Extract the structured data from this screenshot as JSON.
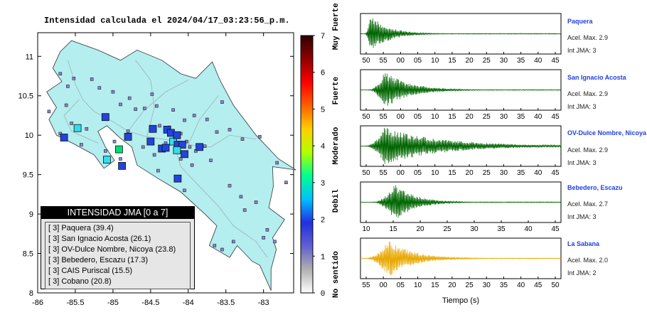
{
  "map": {
    "title": "Intensidad calculada el 2024/04/17_03:23:56_p.m.",
    "y_ticks": [
      "11",
      "10.5",
      "10",
      "9.5",
      "9",
      "8.5",
      "8"
    ],
    "x_ticks": [
      "-86",
      "-85.5",
      "-85",
      "-84.5",
      "-84",
      "-83.5",
      "-83"
    ],
    "sea_color": "#ffffff",
    "land_color": "#b4eeee",
    "station_points": [
      {
        "lon": -85.7,
        "lat": 10.78
      },
      {
        "lon": -85.6,
        "lat": 10.62
      },
      {
        "lon": -85.52,
        "lat": 10.72
      },
      {
        "lon": -85.28,
        "lat": 10.71
      },
      {
        "lon": -85.18,
        "lat": 10.6
      },
      {
        "lon": -85.0,
        "lat": 10.55
      },
      {
        "lon": -84.9,
        "lat": 10.39
      },
      {
        "lon": -84.78,
        "lat": 10.47
      },
      {
        "lon": -84.7,
        "lat": 10.33
      },
      {
        "lon": -84.58,
        "lat": 10.34
      },
      {
        "lon": -84.42,
        "lat": 10.37
      },
      {
        "lon": -84.2,
        "lat": 10.32
      },
      {
        "lon": -84.05,
        "lat": 10.19
      },
      {
        "lon": -83.92,
        "lat": 10.25
      },
      {
        "lon": -83.75,
        "lat": 10.2
      },
      {
        "lon": -83.62,
        "lat": 10.04
      },
      {
        "lon": -83.45,
        "lat": 10.07
      },
      {
        "lon": -83.05,
        "lat": 9.98
      },
      {
        "lon": -82.82,
        "lat": 9.65
      },
      {
        "lon": -85.85,
        "lat": 10.3
      },
      {
        "lon": -85.62,
        "lat": 10.38
      },
      {
        "lon": -85.55,
        "lat": 10.15
      },
      {
        "lon": -85.7,
        "lat": 10.02
      },
      {
        "lon": -85.35,
        "lat": 10.08
      },
      {
        "lon": -85.42,
        "lat": 9.88
      },
      {
        "lon": -85.1,
        "lat": 9.8
      },
      {
        "lon": -84.9,
        "lat": 9.7
      },
      {
        "lon": -84.98,
        "lat": 9.92
      },
      {
        "lon": -84.6,
        "lat": 9.85
      },
      {
        "lon": -84.45,
        "lat": 9.75
      },
      {
        "lon": -84.3,
        "lat": 9.9
      },
      {
        "lon": -84.18,
        "lat": 9.96
      },
      {
        "lon": -84.1,
        "lat": 10.02
      },
      {
        "lon": -84.02,
        "lat": 9.92
      },
      {
        "lon": -83.98,
        "lat": 9.85
      },
      {
        "lon": -83.9,
        "lat": 9.8
      },
      {
        "lon": -83.78,
        "lat": 9.86
      },
      {
        "lon": -83.7,
        "lat": 9.68
      },
      {
        "lon": -83.95,
        "lat": 9.62
      },
      {
        "lon": -84.1,
        "lat": 9.7
      },
      {
        "lon": -83.45,
        "lat": 9.36
      },
      {
        "lon": -83.3,
        "lat": 9.22
      },
      {
        "lon": -83.1,
        "lat": 9.15
      },
      {
        "lon": -83.25,
        "lat": 9.05
      },
      {
        "lon": -82.95,
        "lat": 8.8
      },
      {
        "lon": -83.0,
        "lat": 8.7
      },
      {
        "lon": -82.85,
        "lat": 8.65
      },
      {
        "lon": -83.4,
        "lat": 8.65
      },
      {
        "lon": -83.65,
        "lat": 8.6
      },
      {
        "lon": -83.55,
        "lat": 8.55
      },
      {
        "lon": -82.7,
        "lat": 9.4
      },
      {
        "lon": -84.8,
        "lat": 10.05
      },
      {
        "lon": -84.38,
        "lat": 10.12
      },
      {
        "lon": -84.25,
        "lat": 10.1
      },
      {
        "lon": -83.55,
        "lat": 10.42
      },
      {
        "lon": -83.28,
        "lat": 9.95
      },
      {
        "lon": -84.48,
        "lat": 10.52
      },
      {
        "lon": -84.4,
        "lat": 9.55
      },
      {
        "lon": -84.05,
        "lat": 9.3
      }
    ],
    "intensity_markers": [
      {
        "lon": -85.65,
        "lat": 9.97,
        "size": "L",
        "color": "#2244dd"
      },
      {
        "lon": -85.47,
        "lat": 10.09,
        "size": "L",
        "color": "#33ddee"
      },
      {
        "lon": -85.1,
        "lat": 10.23,
        "size": "L",
        "color": "#2244dd"
      },
      {
        "lon": -84.8,
        "lat": 9.98,
        "size": "L",
        "color": "#2244dd"
      },
      {
        "lon": -84.92,
        "lat": 9.82,
        "size": "L",
        "color": "#00dd77"
      },
      {
        "lon": -85.08,
        "lat": 9.69,
        "size": "L",
        "color": "#33ddee"
      },
      {
        "lon": -84.88,
        "lat": 9.61,
        "size": "L",
        "color": "#2244dd"
      },
      {
        "lon": -84.47,
        "lat": 10.08,
        "size": "L",
        "color": "#2244dd"
      },
      {
        "lon": -84.28,
        "lat": 10.07,
        "size": "L",
        "color": "#2244dd"
      },
      {
        "lon": -84.23,
        "lat": 10.03,
        "size": "L",
        "color": "#2244dd"
      },
      {
        "lon": -84.2,
        "lat": 9.92,
        "size": "L",
        "color": "#33ddee"
      },
      {
        "lon": -84.14,
        "lat": 9.88,
        "size": "L",
        "color": "#2244dd"
      },
      {
        "lon": -84.08,
        "lat": 9.88,
        "size": "L",
        "color": "#2244dd"
      },
      {
        "lon": -84.15,
        "lat": 9.81,
        "size": "L",
        "color": "#33ddee"
      },
      {
        "lon": -84.05,
        "lat": 9.76,
        "size": "L",
        "color": "#2244dd"
      },
      {
        "lon": -84.35,
        "lat": 9.83,
        "size": "L",
        "color": "#2244dd"
      },
      {
        "lon": -84.5,
        "lat": 9.92,
        "size": "L",
        "color": "#2244dd"
      },
      {
        "lon": -84.3,
        "lat": 9.84,
        "size": "L",
        "color": "#2244dd"
      },
      {
        "lon": -84.15,
        "lat": 10.0,
        "size": "L",
        "color": "#2244dd"
      },
      {
        "lon": -83.85,
        "lat": 9.85,
        "size": "L",
        "color": "#2244dd"
      },
      {
        "lon": -84.14,
        "lat": 9.45,
        "size": "L",
        "color": "#2244dd"
      }
    ],
    "colorbar": {
      "ticks": [
        "0",
        "1",
        "2",
        "3",
        "4",
        "5",
        "6",
        "7"
      ],
      "labels": [
        "No sentido",
        "Debil",
        "Moderado",
        "Fuerte",
        "Muy Fuerte"
      ],
      "colors": [
        "#ffffff",
        "#b0b0b0",
        "#6060d0",
        "#2030e0",
        "#00c0ff",
        "#00ff90",
        "#b0ff00",
        "#ffd000",
        "#ff6000",
        "#ff0000",
        "#900000",
        "#300000"
      ]
    }
  },
  "legend": {
    "header": "INTENSIDAD JMA [0 a 7]",
    "rows": [
      "[ 3] Paquera (39.4)",
      "[ 3] San Ignacio Acosta (26.1)",
      "[ 3] OV-Dulce Nombre, Nicoya (23.8)",
      "[ 3] Bebedero, Escazu (17.3)",
      "[ 3] CAIS Puriscal (15.5)",
      "[ 3] Cobano (20.8)"
    ]
  },
  "waveforms": {
    "xlabel": "Tiempo (s)",
    "panels": [
      {
        "name": "Paquera",
        "acel": "Acel. Max. 2.9",
        "int": "Int JMA: 3",
        "ticks": [
          "50",
          "55",
          "00",
          "05",
          "10",
          "15",
          "20",
          "25",
          "30",
          "35",
          "40",
          "45"
        ],
        "color": "#006600",
        "onset": 0.02,
        "peak": 0.05,
        "decay": 0.09,
        "amp": 1.0
      },
      {
        "name": "San Ignacio Acosta",
        "acel": "Acel. Max. 2.9",
        "int": "Int JMA: 3",
        "ticks": [
          "50",
          "55",
          "00",
          "05",
          "10",
          "15",
          "20",
          "25",
          "30",
          "35",
          "40",
          "45"
        ],
        "color": "#006600",
        "onset": 0.04,
        "peak": 0.12,
        "decay": 0.12,
        "amp": 1.0
      },
      {
        "name": "OV-Dulce Nombre, Nicoya",
        "acel": "Acel. Max. 2.9",
        "int": "Int JMA: 3",
        "ticks": [
          "50",
          "55",
          "00",
          "05",
          "10",
          "15",
          "20",
          "25",
          "30",
          "35",
          "40",
          "45"
        ],
        "color": "#006600",
        "onset": 0.02,
        "peak": 0.12,
        "decay": 0.28,
        "amp": 1.0
      },
      {
        "name": "Bebedero, Escazu",
        "acel": "Acel. Max. 2.7",
        "int": "Int JMA: 3",
        "ticks": [
          "10",
          "15",
          "20",
          "25",
          "30",
          "35",
          "40",
          "45"
        ],
        "color": "#006600",
        "onset": 0.06,
        "peak": 0.17,
        "decay": 0.1,
        "amp": 1.0
      },
      {
        "name": "La Sabana",
        "acel": "Acel. Max. 2.0",
        "int": "Int JMA: 2",
        "ticks": [
          "55",
          "00",
          "05",
          "10",
          "15",
          "20",
          "25",
          "30",
          "35",
          "40",
          "45",
          "50"
        ],
        "color": "#e8a800",
        "onset": 0.02,
        "peak": 0.14,
        "decay": 0.12,
        "amp": 1.0
      }
    ]
  }
}
